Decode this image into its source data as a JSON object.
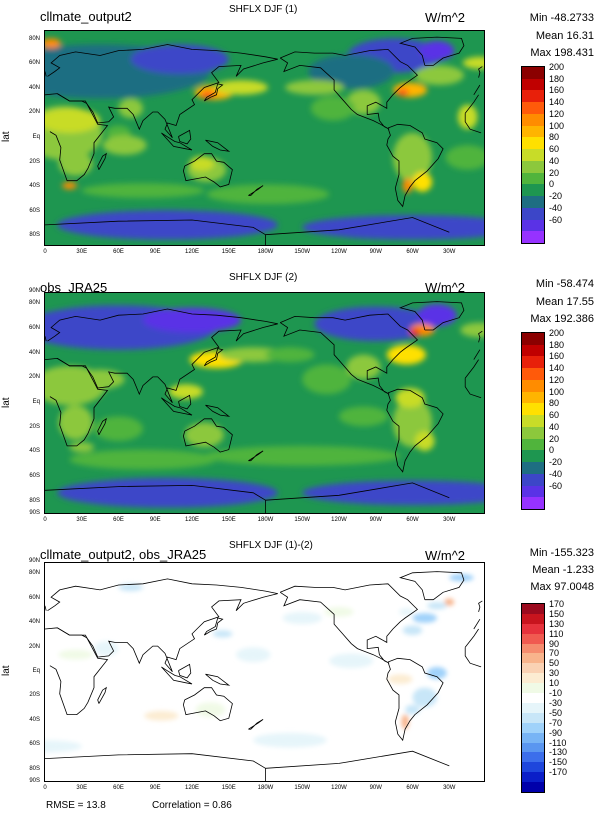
{
  "panels": [
    {
      "name": "cllmate_output2",
      "title": "SHFLX DJF (1)",
      "units": "W/m^2",
      "min": "Min -48.2733",
      "mean": "Mean 16.31",
      "max": "Max 198.431",
      "ylabel": "lat",
      "yticks": [
        "80N",
        "60N",
        "40N",
        "20N",
        "Eq",
        "20S",
        "40S",
        "60S",
        "80S"
      ],
      "xticks": [
        "0",
        "30E",
        "60E",
        "90E",
        "120E",
        "150E",
        "180W",
        "150W",
        "120W",
        "90W",
        "60W",
        "30W"
      ],
      "colorbar": {
        "labels": [
          "200",
          "180",
          "160",
          "140",
          "120",
          "100",
          "80",
          "60",
          "40",
          "20",
          "0",
          "-20",
          "-40",
          "-60"
        ],
        "colors": [
          "#8b0000",
          "#c00000",
          "#e8200a",
          "#ff5a0a",
          "#ff8c00",
          "#ffb400",
          "#ffe000",
          "#c8dc28",
          "#8cc83c",
          "#50b43c",
          "#1e9650",
          "#1e6e82",
          "#3c46c8",
          "#5a32e6",
          "#9632ff"
        ]
      }
    },
    {
      "name": "obs_JRA25",
      "title": "SHFLX DJF (2)",
      "units": "W/m^2",
      "min": "Min -58.474",
      "mean": "Mean 17.55",
      "max": "Max 192.386",
      "ylabel": "lat",
      "yticks": [
        "90N",
        "80N",
        "60N",
        "40N",
        "20N",
        "Eq",
        "20S",
        "40S",
        "60S",
        "80S",
        "90S"
      ],
      "xticks": [
        "0",
        "30E",
        "60E",
        "90E",
        "120E",
        "150E",
        "180W",
        "150W",
        "120W",
        "90W",
        "60W",
        "30W"
      ],
      "colorbar": {
        "labels": [
          "200",
          "180",
          "160",
          "140",
          "120",
          "100",
          "80",
          "60",
          "40",
          "20",
          "0",
          "-20",
          "-40",
          "-60"
        ],
        "colors": [
          "#8b0000",
          "#c00000",
          "#e8200a",
          "#ff5a0a",
          "#ff8c00",
          "#ffb400",
          "#ffe000",
          "#c8dc28",
          "#8cc83c",
          "#50b43c",
          "#1e9650",
          "#1e6e82",
          "#3c46c8",
          "#5a32e6",
          "#9632ff"
        ]
      }
    },
    {
      "name": "cllmate_output2, obs_JRA25",
      "title": "SHFLX DJF (1)-(2)",
      "units": "W/m^2",
      "min": "Min -155.323",
      "mean": "Mean -1.233",
      "max": "Max 97.0048",
      "ylabel": "lat",
      "yticks": [
        "90N",
        "80N",
        "60N",
        "40N",
        "20N",
        "Eq",
        "20S",
        "40S",
        "60S",
        "80S",
        "90S"
      ],
      "xticks": [
        "0",
        "30E",
        "60E",
        "90E",
        "120E",
        "150E",
        "180W",
        "150W",
        "120W",
        "90W",
        "60W",
        "30W"
      ],
      "colorbar": {
        "labels": [
          "170",
          "150",
          "130",
          "110",
          "90",
          "70",
          "50",
          "30",
          "10",
          "-10",
          "-30",
          "-50",
          "-70",
          "-90",
          "-110",
          "-130",
          "-150",
          "-170"
        ],
        "colors": [
          "#9b0a1e",
          "#c8141e",
          "#e6323c",
          "#f05a50",
          "#f58c6e",
          "#f8b48c",
          "#fad2b4",
          "#fcecd2",
          "#f0fae6",
          "#ffffff",
          "#e6f5fa",
          "#c8e6f8",
          "#a0d2fa",
          "#78b4f5",
          "#5a96f0",
          "#3c6eeb",
          "#1e46dc",
          "#0a1ec8",
          "#0000aa"
        ]
      }
    }
  ],
  "footer": {
    "rmse": "RMSE = 13.8",
    "correlation": "Correlation = 0.86"
  }
}
